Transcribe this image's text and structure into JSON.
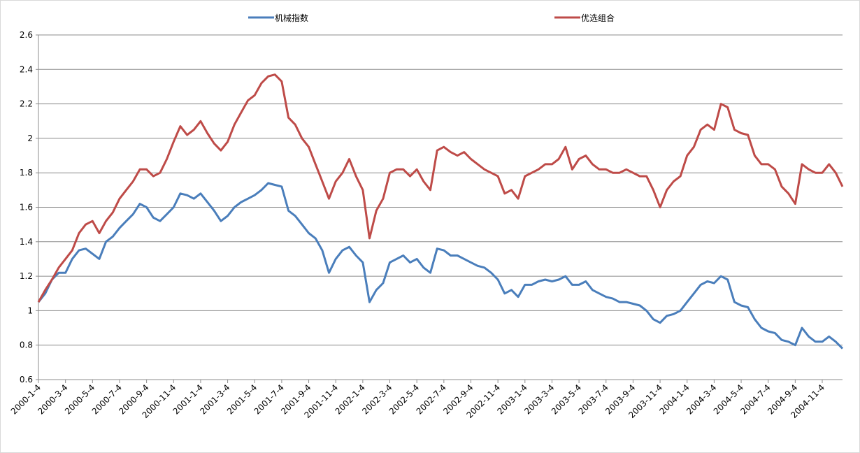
{
  "chart_data": {
    "type": "line",
    "categories": [
      "2000-1-4",
      null,
      null,
      null,
      "2000-3-4",
      null,
      null,
      null,
      "2000-5-4",
      null,
      null,
      null,
      "2000-7-4",
      null,
      null,
      null,
      "2000-9-4",
      null,
      null,
      null,
      "2000-11-4",
      null,
      null,
      null,
      "2001-1-4",
      null,
      null,
      null,
      "2001-3-4",
      null,
      null,
      null,
      "2001-5-4",
      null,
      null,
      null,
      "2001-7-4",
      null,
      null,
      null,
      "2001-9-4",
      null,
      null,
      null,
      "2001-11-4",
      null,
      null,
      null,
      "2002-1-4",
      null,
      null,
      null,
      "2002-3-4",
      null,
      null,
      null,
      "2002-5-4",
      null,
      null,
      null,
      "2002-7-4",
      null,
      null,
      null,
      "2002-9-4",
      null,
      null,
      null,
      "2002-11-4",
      null,
      null,
      null,
      "2003-1-4",
      null,
      null,
      null,
      "2003-3-4",
      null,
      null,
      null,
      "2003-5-4",
      null,
      null,
      null,
      "2003-7-4",
      null,
      null,
      null,
      "2003-9-4",
      null,
      null,
      null,
      "2003-11-4",
      null,
      null,
      null,
      "2004-1-4",
      null,
      null,
      null,
      "2004-3-4",
      null,
      null,
      null,
      "2004-5-4",
      null,
      null,
      null,
      "2004-7-4",
      null,
      null,
      null,
      "2004-9-4",
      null,
      null,
      null,
      "2004-11-4",
      null,
      null,
      null
    ],
    "series": [
      {
        "name": "机械指数",
        "color": "#4a7ebb",
        "values": [
          1.05,
          1.1,
          1.18,
          1.22,
          1.22,
          1.3,
          1.35,
          1.36,
          1.33,
          1.3,
          1.4,
          1.43,
          1.48,
          1.52,
          1.56,
          1.62,
          1.6,
          1.54,
          1.52,
          1.56,
          1.6,
          1.68,
          1.67,
          1.65,
          1.68,
          1.63,
          1.58,
          1.52,
          1.55,
          1.6,
          1.63,
          1.65,
          1.67,
          1.7,
          1.74,
          1.73,
          1.72,
          1.58,
          1.55,
          1.5,
          1.45,
          1.42,
          1.35,
          1.22,
          1.3,
          1.35,
          1.37,
          1.32,
          1.28,
          1.05,
          1.12,
          1.16,
          1.28,
          1.3,
          1.32,
          1.28,
          1.3,
          1.25,
          1.22,
          1.36,
          1.35,
          1.32,
          1.32,
          1.3,
          1.28,
          1.26,
          1.25,
          1.22,
          1.18,
          1.1,
          1.12,
          1.08,
          1.15,
          1.15,
          1.17,
          1.18,
          1.17,
          1.18,
          1.2,
          1.15,
          1.15,
          1.17,
          1.12,
          1.1,
          1.08,
          1.07,
          1.05,
          1.05,
          1.04,
          1.03,
          1.0,
          0.95,
          0.93,
          0.97,
          0.98,
          1.0,
          1.05,
          1.1,
          1.15,
          1.17,
          1.16,
          1.2,
          1.18,
          1.05,
          1.03,
          1.02,
          0.95,
          0.9,
          0.88,
          0.87,
          0.83,
          0.82,
          0.8,
          0.9,
          0.85,
          0.82,
          0.82,
          0.85,
          0.82,
          0.78
        ]
      },
      {
        "name": "优选组合",
        "color": "#be4b48",
        "values": [
          1.05,
          1.12,
          1.18,
          1.25,
          1.3,
          1.35,
          1.45,
          1.5,
          1.52,
          1.45,
          1.52,
          1.57,
          1.65,
          1.7,
          1.75,
          1.82,
          1.82,
          1.78,
          1.8,
          1.88,
          1.98,
          2.07,
          2.02,
          2.05,
          2.1,
          2.03,
          1.97,
          1.93,
          1.98,
          2.08,
          2.15,
          2.22,
          2.25,
          2.32,
          2.36,
          2.37,
          2.33,
          2.12,
          2.08,
          2.0,
          1.95,
          1.85,
          1.75,
          1.65,
          1.75,
          1.8,
          1.88,
          1.78,
          1.7,
          1.42,
          1.58,
          1.65,
          1.8,
          1.82,
          1.82,
          1.78,
          1.82,
          1.75,
          1.7,
          1.93,
          1.95,
          1.92,
          1.9,
          1.92,
          1.88,
          1.85,
          1.82,
          1.8,
          1.78,
          1.68,
          1.7,
          1.65,
          1.78,
          1.8,
          1.82,
          1.85,
          1.85,
          1.88,
          1.95,
          1.82,
          1.88,
          1.9,
          1.85,
          1.82,
          1.82,
          1.8,
          1.8,
          1.82,
          1.8,
          1.78,
          1.78,
          1.7,
          1.6,
          1.7,
          1.75,
          1.78,
          1.9,
          1.95,
          2.05,
          2.08,
          2.05,
          2.2,
          2.18,
          2.05,
          2.03,
          2.02,
          1.9,
          1.85,
          1.85,
          1.82,
          1.72,
          1.68,
          1.62,
          1.85,
          1.82,
          1.8,
          1.8,
          1.85,
          1.8,
          1.72
        ]
      }
    ],
    "ylim": [
      0.6,
      2.6
    ],
    "yticks": [
      0.6,
      0.8,
      1,
      1.2,
      1.4,
      1.6,
      1.8,
      2,
      2.2,
      2.4,
      2.6
    ],
    "grid": true,
    "legend": "top"
  }
}
